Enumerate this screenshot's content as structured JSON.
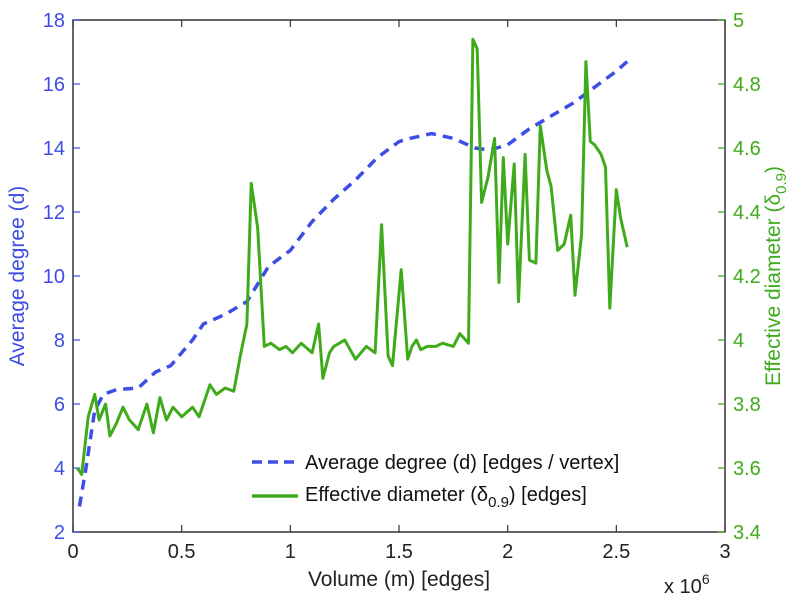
{
  "chart_data": {
    "type": "line",
    "xlabel": "Volume (m) [edges]",
    "x_multiplier": "x 10",
    "x_multiplier_exp": "6",
    "xlim": [
      0,
      3
    ],
    "x_ticks": [
      "0",
      "0.5",
      "1",
      "1.5",
      "2",
      "2.5",
      "3"
    ],
    "y_left": {
      "label": "Average degree (d)",
      "lim": [
        2,
        18
      ],
      "ticks": [
        "2",
        "4",
        "6",
        "8",
        "10",
        "12",
        "14",
        "16",
        "18"
      ],
      "color": "#3d4de6"
    },
    "y_right": {
      "label_main": "Effective diameter (δ",
      "label_sub": "0.9",
      "label_end": ")",
      "lim": [
        3.4,
        5.0
      ],
      "ticks": [
        "3.4",
        "3.6",
        "3.8",
        "4",
        "4.2",
        "4.4",
        "4.6",
        "4.8",
        "5"
      ],
      "color": "#3fab1c"
    },
    "legend_position": "bottom-right",
    "series": [
      {
        "name": "Average degree (d) [edges / vertex]",
        "axis": "left",
        "style": "dashed",
        "color": "#3d4de6",
        "x": [
          0.03,
          0.06,
          0.1,
          0.14,
          0.2,
          0.3,
          0.38,
          0.45,
          0.55,
          0.6,
          0.7,
          0.8,
          0.9,
          1.0,
          1.1,
          1.2,
          1.3,
          1.4,
          1.5,
          1.55,
          1.65,
          1.75,
          1.85,
          1.9,
          1.95,
          2.0,
          2.1,
          2.2,
          2.3,
          2.4,
          2.5,
          2.55
        ],
        "y": [
          2.8,
          4.0,
          5.8,
          6.3,
          6.45,
          6.5,
          7.0,
          7.2,
          8.0,
          8.5,
          8.8,
          9.2,
          10.3,
          10.8,
          11.7,
          12.4,
          13.0,
          13.7,
          14.2,
          14.3,
          14.45,
          14.3,
          14.0,
          13.95,
          14.0,
          14.1,
          14.6,
          15.0,
          15.4,
          15.9,
          16.4,
          16.7
        ]
      },
      {
        "name_main": "Effective diameter (δ",
        "name_sub": "0.9",
        "name_end": ") [edges]",
        "axis": "right",
        "style": "solid",
        "color": "#3fab1c",
        "x": [
          0.02,
          0.04,
          0.07,
          0.1,
          0.12,
          0.15,
          0.17,
          0.2,
          0.23,
          0.26,
          0.3,
          0.34,
          0.37,
          0.4,
          0.43,
          0.46,
          0.5,
          0.55,
          0.58,
          0.6,
          0.63,
          0.66,
          0.7,
          0.74,
          0.77,
          0.8,
          0.82,
          0.85,
          0.88,
          0.91,
          0.95,
          0.98,
          1.01,
          1.05,
          1.1,
          1.13,
          1.15,
          1.18,
          1.2,
          1.25,
          1.3,
          1.35,
          1.39,
          1.42,
          1.45,
          1.47,
          1.51,
          1.54,
          1.56,
          1.58,
          1.6,
          1.63,
          1.67,
          1.7,
          1.75,
          1.78,
          1.82,
          1.84,
          1.86,
          1.88,
          1.91,
          1.94,
          1.96,
          1.98,
          2.0,
          2.03,
          2.05,
          2.08,
          2.1,
          2.13,
          2.15,
          2.18,
          2.2,
          2.23,
          2.26,
          2.29,
          2.31,
          2.34,
          2.36,
          2.38,
          2.4,
          2.43,
          2.45,
          2.47,
          2.5,
          2.52,
          2.55
        ],
        "y": [
          3.6,
          3.58,
          3.76,
          3.83,
          3.75,
          3.8,
          3.7,
          3.74,
          3.79,
          3.75,
          3.72,
          3.8,
          3.71,
          3.82,
          3.75,
          3.79,
          3.76,
          3.79,
          3.76,
          3.8,
          3.86,
          3.83,
          3.85,
          3.84,
          3.95,
          4.05,
          4.49,
          4.35,
          3.98,
          3.99,
          3.97,
          3.98,
          3.96,
          3.99,
          3.96,
          4.05,
          3.88,
          3.96,
          3.98,
          4.0,
          3.94,
          3.98,
          3.96,
          4.36,
          3.95,
          3.92,
          4.22,
          3.94,
          3.98,
          4.0,
          3.97,
          3.98,
          3.98,
          3.99,
          3.98,
          4.02,
          3.99,
          4.94,
          4.91,
          4.43,
          4.51,
          4.63,
          4.18,
          4.57,
          4.3,
          4.55,
          4.12,
          4.58,
          4.25,
          4.24,
          4.67,
          4.53,
          4.48,
          4.28,
          4.3,
          4.39,
          4.14,
          4.33,
          4.87,
          4.62,
          4.61,
          4.58,
          4.54,
          4.1,
          4.47,
          4.38,
          4.29
        ]
      }
    ]
  }
}
